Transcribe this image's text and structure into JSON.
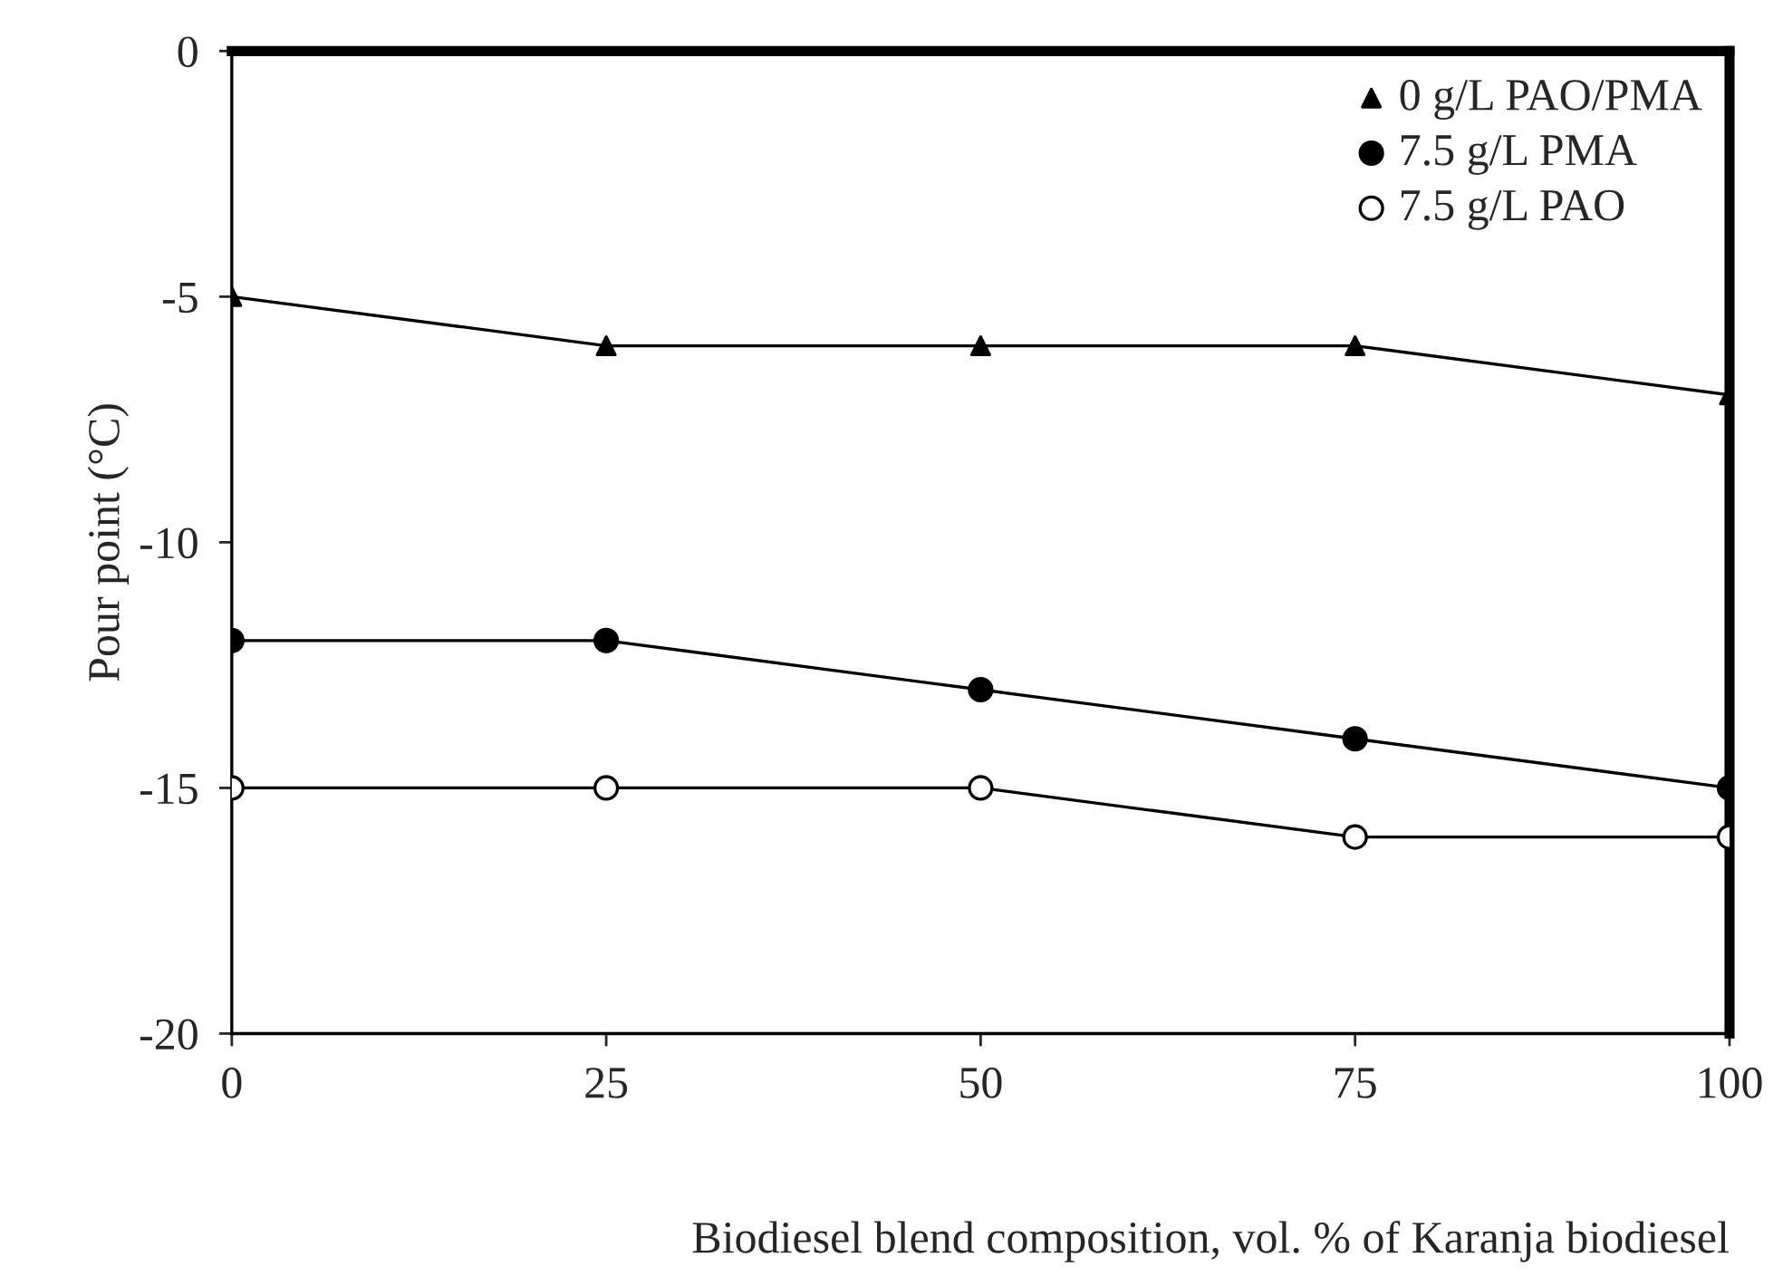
{
  "chart_data": {
    "type": "line",
    "xlabel": "Biodiesel blend composition, vol. % of Karanja biodiesel",
    "ylabel": "Pour point (°C)",
    "x": [
      0,
      25,
      50,
      75,
      100
    ],
    "series": [
      {
        "name": "0 g/L PAO/PMA",
        "color": "#000000",
        "marker": "triangle",
        "values": [
          -5,
          -6,
          -6,
          -6,
          -7
        ]
      },
      {
        "name": "7.5 g/L PMA",
        "color": "#000000",
        "marker": "circle",
        "values": [
          -12,
          -12,
          -13,
          -14,
          -15
        ]
      },
      {
        "name": "7.5 g/L PAO",
        "color": "#ffffff",
        "marker": "circle",
        "values": [
          -15,
          -15,
          -15,
          -16,
          -16
        ]
      }
    ],
    "xlim": [
      0,
      100
    ],
    "xticks": [
      0,
      25,
      50,
      75,
      100
    ],
    "ylim": [
      -20,
      0
    ],
    "yticks": [
      -20,
      -15,
      -10,
      -5,
      0
    ],
    "grid": false,
    "legend": "top right",
    "line_style": "solid"
  }
}
